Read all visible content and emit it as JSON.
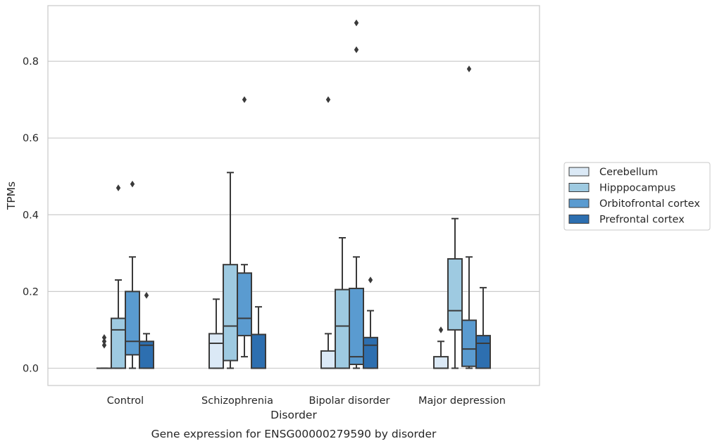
{
  "chart_data": {
    "type": "boxplot",
    "caption": "Gene expression for ENSG00000279590 by disorder",
    "xlabel": "Disorder",
    "ylabel": "TPMs",
    "ylim": [
      -0.045,
      0.945
    ],
    "yticks": [
      0.0,
      0.2,
      0.4,
      0.6,
      0.8
    ],
    "ytick_labels": [
      "0.0",
      "0.2",
      "0.4",
      "0.6",
      "0.8"
    ],
    "grid": "horizontal",
    "legend_position": "right",
    "categories": [
      "Control",
      "Schizophrenia",
      "Bipolar disorder",
      "Major depression"
    ],
    "series": [
      {
        "name": "Cerebellum",
        "color": "#dbe9f6",
        "boxes": [
          {
            "q1": 0.0,
            "median": 0.0,
            "q3": 0.0,
            "whisker_low": 0.0,
            "whisker_high": 0.0,
            "outliers": [
              0.06,
              0.07,
              0.08
            ]
          },
          {
            "q1": 0.0,
            "median": 0.065,
            "q3": 0.09,
            "whisker_low": 0.0,
            "whisker_high": 0.18,
            "outliers": []
          },
          {
            "q1": 0.0,
            "median": 0.0,
            "q3": 0.045,
            "whisker_low": 0.0,
            "whisker_high": 0.09,
            "outliers": [
              0.7
            ]
          },
          {
            "q1": 0.0,
            "median": 0.0,
            "q3": 0.03,
            "whisker_low": 0.0,
            "whisker_high": 0.07,
            "outliers": [
              0.1
            ]
          }
        ]
      },
      {
        "name": "Hipppocampus",
        "color": "#9ecae1",
        "boxes": [
          {
            "q1": 0.0,
            "median": 0.1,
            "q3": 0.13,
            "whisker_low": 0.0,
            "whisker_high": 0.23,
            "outliers": [
              0.47
            ]
          },
          {
            "q1": 0.02,
            "median": 0.11,
            "q3": 0.27,
            "whisker_low": 0.0,
            "whisker_high": 0.51,
            "outliers": []
          },
          {
            "q1": 0.0,
            "median": 0.11,
            "q3": 0.205,
            "whisker_low": 0.0,
            "whisker_high": 0.34,
            "outliers": []
          },
          {
            "q1": 0.1,
            "median": 0.15,
            "q3": 0.285,
            "whisker_low": 0.0,
            "whisker_high": 0.39,
            "outliers": []
          }
        ]
      },
      {
        "name": "Orbitofrontal cortex",
        "color": "#5a9bd0",
        "boxes": [
          {
            "q1": 0.035,
            "median": 0.07,
            "q3": 0.2,
            "whisker_low": 0.0,
            "whisker_high": 0.29,
            "outliers": [
              0.48
            ]
          },
          {
            "q1": 0.085,
            "median": 0.13,
            "q3": 0.248,
            "whisker_low": 0.03,
            "whisker_high": 0.27,
            "outliers": [
              0.7
            ]
          },
          {
            "q1": 0.01,
            "median": 0.03,
            "q3": 0.208,
            "whisker_low": 0.0,
            "whisker_high": 0.29,
            "outliers": [
              0.83,
              0.9
            ]
          },
          {
            "q1": 0.005,
            "median": 0.05,
            "q3": 0.125,
            "whisker_low": 0.0,
            "whisker_high": 0.29,
            "outliers": [
              0.78
            ]
          }
        ]
      },
      {
        "name": "Prefrontal cortex",
        "color": "#2d6fb0",
        "boxes": [
          {
            "q1": 0.0,
            "median": 0.06,
            "q3": 0.07,
            "whisker_low": 0.0,
            "whisker_high": 0.09,
            "outliers": [
              0.19
            ]
          },
          {
            "q1": 0.0,
            "median": 0.0,
            "q3": 0.088,
            "whisker_low": 0.0,
            "whisker_high": 0.16,
            "outliers": []
          },
          {
            "q1": 0.0,
            "median": 0.06,
            "q3": 0.08,
            "whisker_low": 0.0,
            "whisker_high": 0.15,
            "outliers": [
              0.23
            ]
          },
          {
            "q1": 0.0,
            "median": 0.065,
            "q3": 0.085,
            "whisker_low": 0.0,
            "whisker_high": 0.21,
            "outliers": []
          }
        ]
      }
    ],
    "colors": {
      "grid": "#cccccc",
      "frame": "#c8c8c8",
      "edge": "#3a3a3a"
    }
  }
}
